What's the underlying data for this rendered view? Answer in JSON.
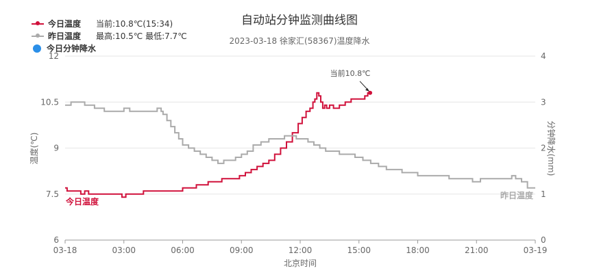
{
  "legend": {
    "today": {
      "name": "今日温度",
      "info": "当前:10.8℃(15:34)",
      "color": "#d0103a"
    },
    "yesterday": {
      "name": "昨日温度",
      "info": "最高:10.5℃ 最低:7.7℃",
      "color": "#aaaaaa"
    },
    "rain": {
      "name": "今日分钟降水",
      "color": "#2b8fe8"
    }
  },
  "chart_data": {
    "type": "line",
    "title": "自动站分钟监测曲线图",
    "subtitle": "2023-03-18 徐家汇(58367)温度降水",
    "xlabel": "北京时间",
    "ylabel_left": "温度(℃)",
    "ylabel_right": "分钟降水(mm)",
    "x_ticks": [
      "03-18",
      "03:00",
      "06:00",
      "09:00",
      "12:00",
      "15:00",
      "18:00",
      "21:00",
      "03-19"
    ],
    "x_range_hours": [
      0,
      24
    ],
    "y_left_ticks": [
      "6",
      "7.5",
      "9",
      "10.5",
      "12"
    ],
    "y_left_range": [
      6,
      12
    ],
    "y_right_ticks": [
      "0",
      "1",
      "2",
      "3",
      "4"
    ],
    "y_right_range": [
      0,
      4
    ],
    "grid": true,
    "annotation": "当前10.8℃",
    "series": [
      {
        "name": "今日温度",
        "color": "#d0103a",
        "end_label": "今日温度",
        "x_hours": [
          0,
          0.1,
          0.5,
          0.8,
          1,
          1.2,
          1.4,
          2,
          2.5,
          2.9,
          3.1,
          3.3,
          3.6,
          4,
          5,
          5.8,
          6,
          6.4,
          6.7,
          7,
          7.3,
          7.6,
          8,
          8.3,
          8.6,
          8.9,
          9.2,
          9.5,
          9.8,
          10.1,
          10.4,
          10.7,
          11,
          11.3,
          11.6,
          11.9,
          12.1,
          12.3,
          12.5,
          12.65,
          12.75,
          12.85,
          12.95,
          13.05,
          13.15,
          13.25,
          13.35,
          13.5,
          13.7,
          14,
          14.3,
          14.6,
          14.9,
          15.1,
          15.3,
          15.45,
          15.57
        ],
        "values": [
          7.7,
          7.6,
          7.6,
          7.5,
          7.6,
          7.5,
          7.5,
          7.5,
          7.5,
          7.4,
          7.5,
          7.5,
          7.5,
          7.6,
          7.6,
          7.6,
          7.7,
          7.7,
          7.8,
          7.8,
          7.9,
          7.9,
          8,
          8,
          8,
          8.1,
          8.2,
          8.3,
          8.4,
          8.5,
          8.6,
          8.8,
          9,
          9.2,
          9.5,
          9.8,
          10,
          10.2,
          10.3,
          10.5,
          10.6,
          10.8,
          10.7,
          10.5,
          10.3,
          10.4,
          10.3,
          10.4,
          10.3,
          10.4,
          10.5,
          10.6,
          10.6,
          10.6,
          10.7,
          10.8,
          10.8
        ]
      },
      {
        "name": "昨日温度",
        "color": "#aaaaaa",
        "end_label": "昨日温度",
        "x_hours": [
          0,
          0.3,
          0.6,
          1,
          1.3,
          1.5,
          1.7,
          2,
          2.3,
          2.5,
          2.8,
          3,
          3.3,
          3.6,
          4,
          4.4,
          4.7,
          4.9,
          5,
          5.2,
          5.4,
          5.6,
          5.8,
          6,
          6.3,
          6.6,
          6.9,
          7.2,
          7.5,
          7.8,
          8.1,
          8.4,
          8.7,
          9,
          9.3,
          9.6,
          10,
          10.4,
          10.8,
          11.2,
          11.5,
          11.8,
          12.1,
          12.4,
          12.7,
          13,
          13.3,
          13.6,
          14,
          14.4,
          14.8,
          15.2,
          15.6,
          16,
          16.4,
          16.8,
          17.2,
          17.6,
          18,
          18.4,
          18.8,
          19.2,
          19.6,
          20,
          20.4,
          20.8,
          21.2,
          21.6,
          22,
          22.4,
          22.8,
          23,
          23.3,
          23.6,
          24
        ],
        "values": [
          10.4,
          10.5,
          10.5,
          10.4,
          10.4,
          10.3,
          10.3,
          10.2,
          10.2,
          10.2,
          10.2,
          10.3,
          10.2,
          10.2,
          10.2,
          10.2,
          10.3,
          10.2,
          10.1,
          9.9,
          9.7,
          9.5,
          9.3,
          9.1,
          9,
          8.9,
          8.8,
          8.7,
          8.6,
          8.5,
          8.6,
          8.6,
          8.7,
          8.8,
          8.9,
          9.1,
          9.2,
          9.3,
          9.3,
          9.4,
          9.4,
          9.3,
          9.3,
          9.2,
          9.1,
          9,
          8.9,
          8.9,
          8.8,
          8.8,
          8.7,
          8.6,
          8.5,
          8.4,
          8.3,
          8.3,
          8.2,
          8.2,
          8.1,
          8.1,
          8.1,
          8.1,
          8,
          8,
          8,
          7.9,
          8,
          8,
          8,
          8,
          8.1,
          8,
          7.9,
          7.7,
          7.7
        ]
      }
    ]
  }
}
